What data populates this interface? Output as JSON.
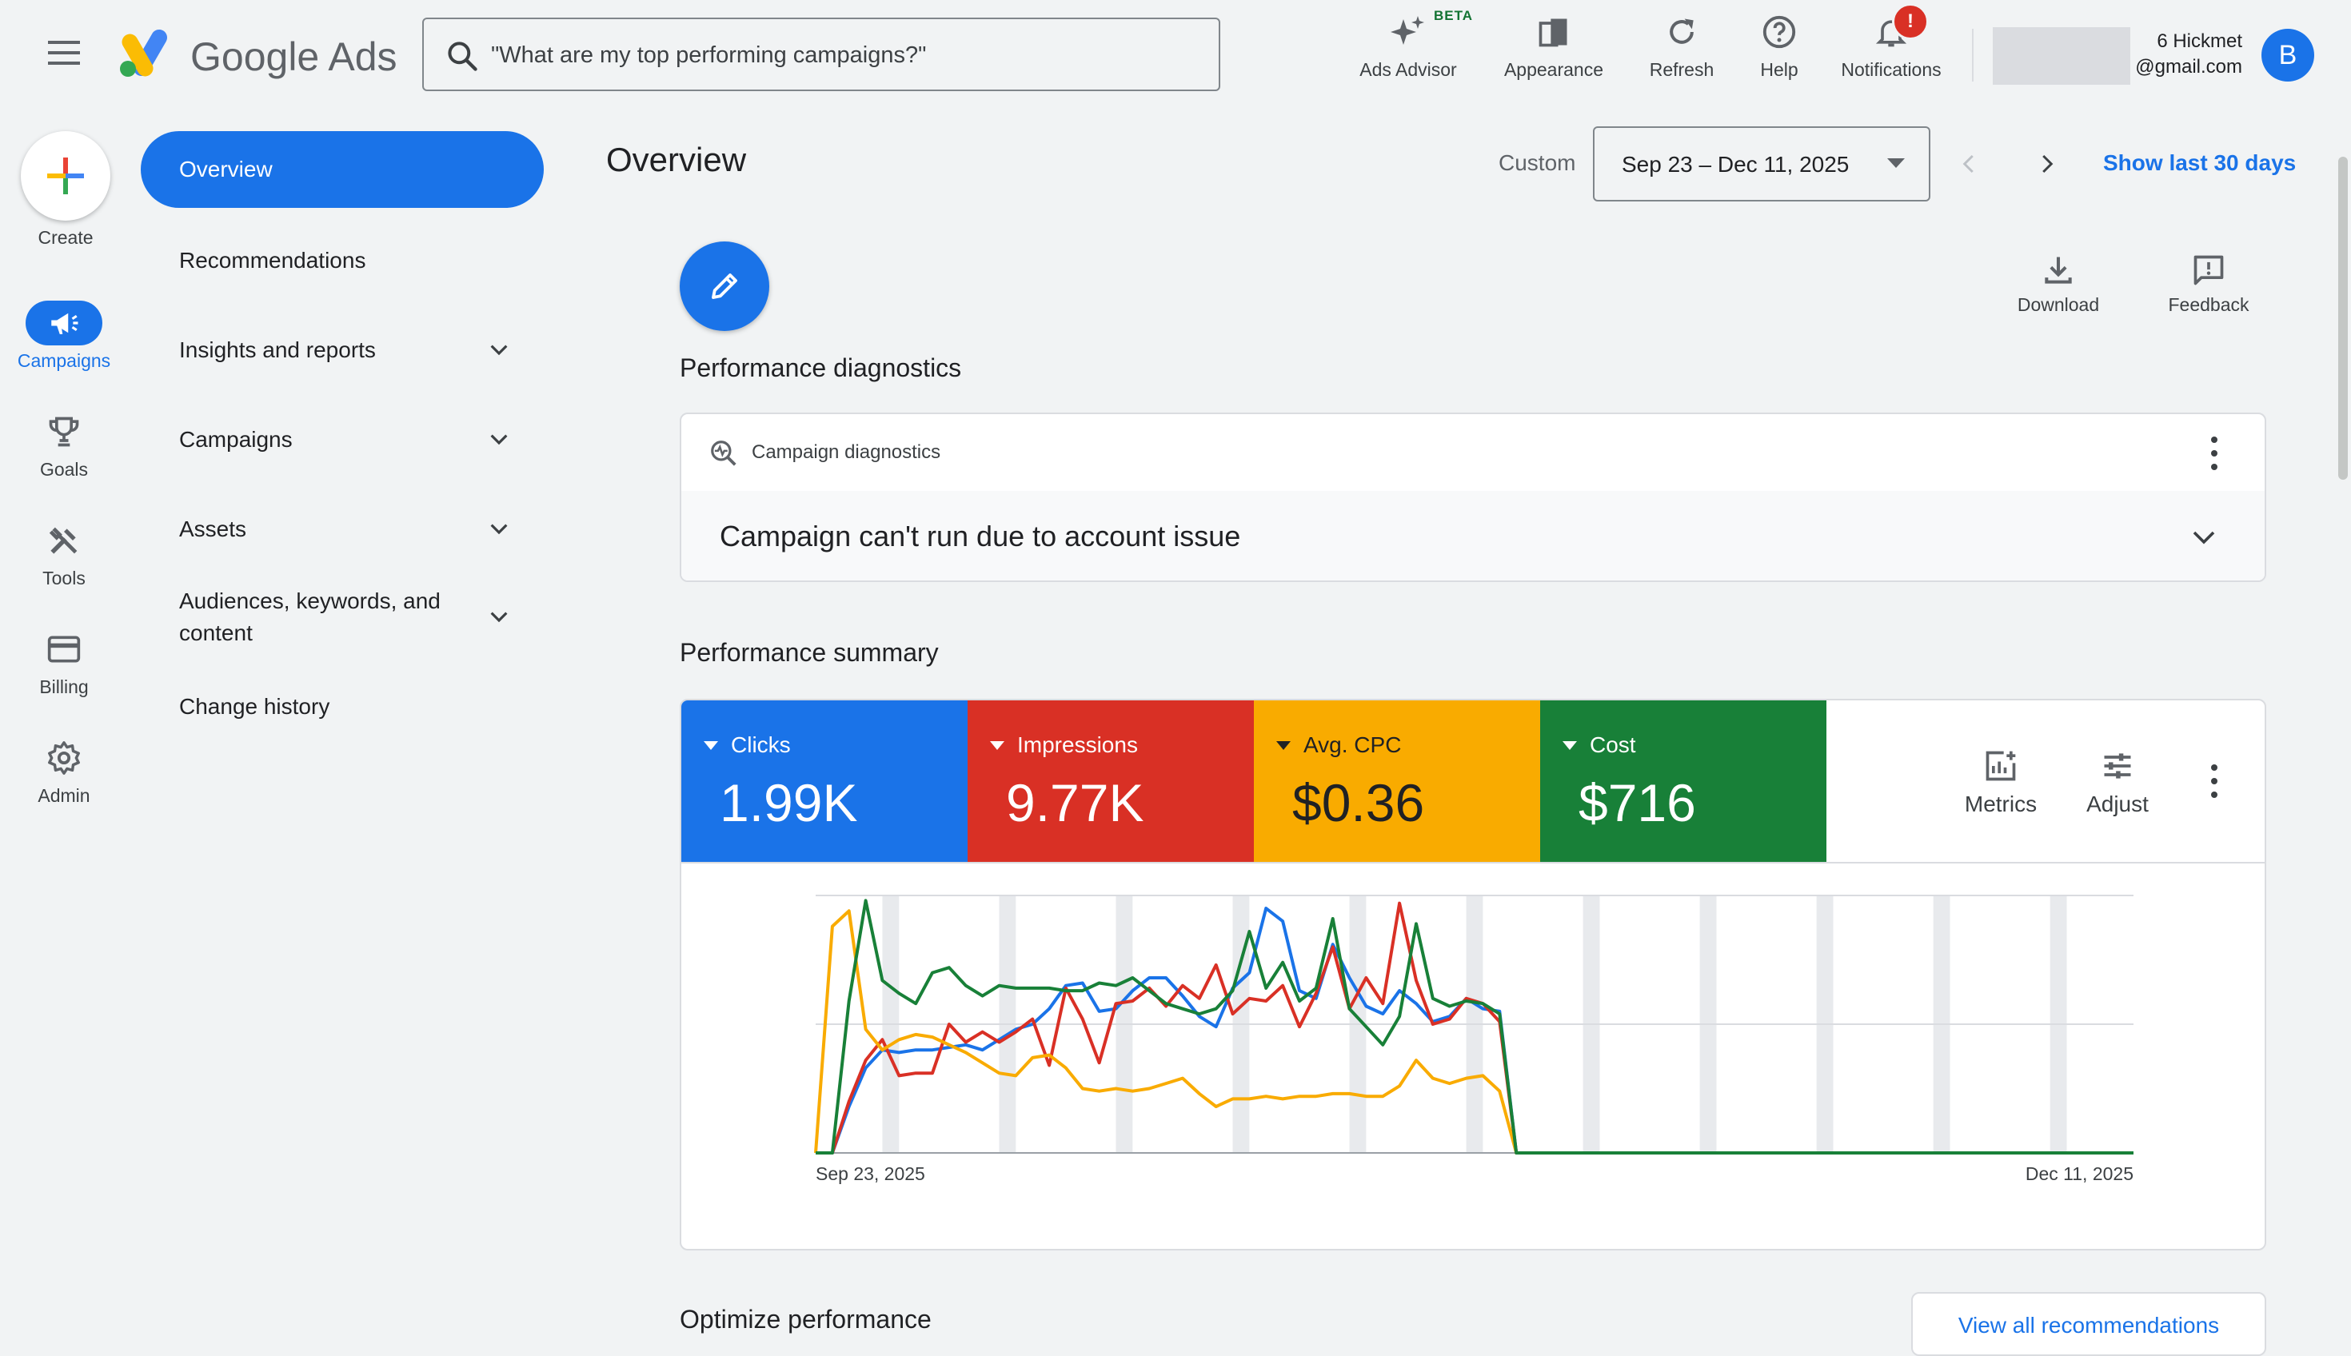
{
  "app": {
    "product_name": "Google Ads",
    "search_placeholder": "\"What are my top performing campaigns?\""
  },
  "top_tools": [
    {
      "label": "Ads Advisor",
      "icon": "sparkle-icon",
      "badge": "BETA"
    },
    {
      "label": "Appearance",
      "icon": "appearance-icon"
    },
    {
      "label": "Refresh",
      "icon": "refresh-icon"
    },
    {
      "label": "Help",
      "icon": "help-icon"
    },
    {
      "label": "Notifications",
      "icon": "bell-icon",
      "badge": "!"
    }
  ],
  "account": {
    "line1": "6 Hickmet",
    "line2": "@gmail.com",
    "avatar_letter": "B"
  },
  "rail": {
    "create_label": "Create",
    "items": [
      {
        "label": "Campaigns",
        "icon": "megaphone-icon",
        "active": true
      },
      {
        "label": "Goals",
        "icon": "trophy-icon"
      },
      {
        "label": "Tools",
        "icon": "tools-icon"
      },
      {
        "label": "Billing",
        "icon": "credit-card-icon"
      },
      {
        "label": "Admin",
        "icon": "gear-icon"
      }
    ]
  },
  "nav": {
    "items": [
      {
        "label": "Overview",
        "active": true
      },
      {
        "label": "Recommendations"
      },
      {
        "label": "Insights and reports",
        "expandable": true
      },
      {
        "label": "Campaigns",
        "expandable": true
      },
      {
        "label": "Assets",
        "expandable": true
      },
      {
        "label": "Audiences, keywords, and content",
        "expandable": true
      },
      {
        "label": "Change history"
      }
    ]
  },
  "header": {
    "title": "Overview",
    "range_label": "Custom",
    "date_range": "Sep 23 – Dec 11, 2025",
    "show_last": "Show last 30 days"
  },
  "actions": {
    "download": "Download",
    "feedback": "Feedback"
  },
  "diagnostics": {
    "section_title": "Performance diagnostics",
    "card_title": "Campaign diagnostics",
    "issue": "Campaign can't run due to account issue"
  },
  "summary": {
    "section_title": "Performance summary",
    "metrics": [
      {
        "name": "Clicks",
        "value": "1.99K",
        "color": "#1a73e8"
      },
      {
        "name": "Impressions",
        "value": "9.77K",
        "color": "#d93025"
      },
      {
        "name": "Avg. CPC",
        "value": "$0.36",
        "color": "#f9ab00"
      },
      {
        "name": "Cost",
        "value": "$716",
        "color": "#188038"
      }
    ],
    "metrics_button": "Metrics",
    "adjust_button": "Adjust"
  },
  "chart_data": {
    "type": "line",
    "x_start": "Sep 23, 2025",
    "x_end": "Dec 11, 2025",
    "x_tick_labels": [
      "Sep 23, 2025",
      "Dec 11, 2025"
    ],
    "num_days": 80,
    "grid": true,
    "y_normalized": true,
    "ylim": [
      0,
      1
    ],
    "series": [
      {
        "name": "Clicks",
        "color": "#1a73e8",
        "values": [
          0,
          0,
          0.18,
          0.33,
          0.4,
          0.39,
          0.4,
          0.4,
          0.41,
          0.42,
          0.4,
          0.44,
          0.48,
          0.5,
          0.56,
          0.65,
          0.66,
          0.55,
          0.56,
          0.63,
          0.68,
          0.68,
          0.61,
          0.53,
          0.49,
          0.64,
          0.7,
          0.95,
          0.9,
          0.63,
          0.6,
          0.81,
          0.68,
          0.57,
          0.54,
          0.63,
          0.58,
          0.51,
          0.53,
          0.6,
          0.56,
          0.55,
          0,
          0,
          0,
          0,
          0,
          0,
          0,
          0,
          0,
          0,
          0,
          0,
          0,
          0,
          0,
          0,
          0,
          0,
          0,
          0,
          0,
          0,
          0,
          0,
          0,
          0,
          0,
          0,
          0,
          0,
          0,
          0,
          0,
          0,
          0,
          0,
          0,
          0
        ]
      },
      {
        "name": "Impressions",
        "color": "#d93025",
        "values": [
          0,
          0,
          0.2,
          0.36,
          0.44,
          0.3,
          0.31,
          0.31,
          0.5,
          0.43,
          0.47,
          0.43,
          0.47,
          0.52,
          0.34,
          0.64,
          0.52,
          0.35,
          0.58,
          0.59,
          0.64,
          0.57,
          0.65,
          0.6,
          0.73,
          0.54,
          0.6,
          0.59,
          0.65,
          0.49,
          0.62,
          0.8,
          0.56,
          0.68,
          0.58,
          0.97,
          0.67,
          0.5,
          0.52,
          0.6,
          0.58,
          0.51,
          0,
          0,
          0,
          0,
          0,
          0,
          0,
          0,
          0,
          0,
          0,
          0,
          0,
          0,
          0,
          0,
          0,
          0,
          0,
          0,
          0,
          0,
          0,
          0,
          0,
          0,
          0,
          0,
          0,
          0,
          0,
          0,
          0,
          0,
          0,
          0,
          0,
          0
        ]
      },
      {
        "name": "Avg. CPC",
        "color": "#f9ab00",
        "values": [
          0,
          0.88,
          0.94,
          0.48,
          0.4,
          0.44,
          0.46,
          0.45,
          0.42,
          0.39,
          0.35,
          0.31,
          0.3,
          0.37,
          0.38,
          0.33,
          0.25,
          0.24,
          0.25,
          0.24,
          0.25,
          0.27,
          0.29,
          0.23,
          0.18,
          0.21,
          0.21,
          0.22,
          0.21,
          0.22,
          0.22,
          0.23,
          0.23,
          0.22,
          0.22,
          0.26,
          0.36,
          0.29,
          0.27,
          0.29,
          0.3,
          0.24,
          0,
          0,
          0,
          0,
          0,
          0,
          0,
          0,
          0,
          0,
          0,
          0,
          0,
          0,
          0,
          0,
          0,
          0,
          0,
          0,
          0,
          0,
          0,
          0,
          0,
          0,
          0,
          0,
          0,
          0,
          0,
          0,
          0,
          0,
          0,
          0,
          0,
          0
        ]
      },
      {
        "name": "Cost",
        "color": "#188038",
        "values": [
          0,
          0,
          0.59,
          0.98,
          0.67,
          0.62,
          0.58,
          0.7,
          0.72,
          0.65,
          0.61,
          0.65,
          0.64,
          0.64,
          0.64,
          0.63,
          0.63,
          0.66,
          0.65,
          0.68,
          0.63,
          0.58,
          0.56,
          0.54,
          0.56,
          0.63,
          0.86,
          0.64,
          0.74,
          0.59,
          0.64,
          0.91,
          0.56,
          0.49,
          0.42,
          0.53,
          0.89,
          0.6,
          0.57,
          0.59,
          0.58,
          0.54,
          0,
          0,
          0,
          0,
          0,
          0,
          0,
          0,
          0,
          0,
          0,
          0,
          0,
          0,
          0,
          0,
          0,
          0,
          0,
          0,
          0,
          0,
          0,
          0,
          0,
          0,
          0,
          0,
          0,
          0,
          0,
          0,
          0,
          0,
          0,
          0,
          0,
          0
        ]
      }
    ]
  },
  "optimize": {
    "section_title": "Optimize performance",
    "view_all": "View all recommendations"
  }
}
